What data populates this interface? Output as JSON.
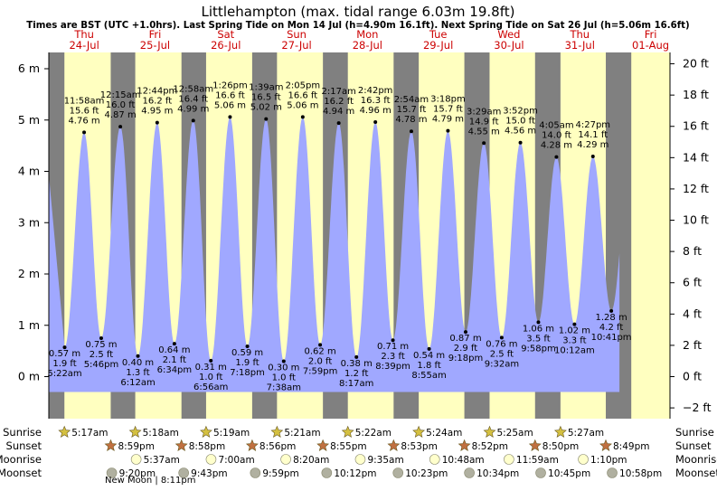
{
  "title": "Littlehampton (max. tidal range 6.03m 19.8ft)",
  "subtitle": "Times are BST (UTC +1.0hrs). Last Spring Tide on Mon 14 Jul (h=4.90m 16.1ft). Next Spring Tide on Sat 26 Jul (h=5.06m 16.6ft)",
  "colors": {
    "day": "#ffffc0",
    "night": "#808080",
    "tide": "#a0a8ff",
    "header_text": "#cc0000",
    "sunrise_icon": "#d4c040",
    "sunset_icon": "#c07040",
    "moonrise_icon": "#ffffcc",
    "moonset_icon": "#b0b0a0"
  },
  "chart_data": {
    "type": "area",
    "y_left_unit": "m",
    "y_right_unit": "ft",
    "ylim": [
      -0.3,
      6.3
    ],
    "left_ticks": [
      "0 m",
      "1 m",
      "2 m",
      "3 m",
      "4 m",
      "5 m",
      "6 m"
    ],
    "right_ticks": [
      "−2 ft",
      "0 ft",
      "2 ft",
      "4 ft",
      "6 ft",
      "8 ft",
      "10 ft",
      "12 ft",
      "14 ft",
      "16 ft",
      "18 ft",
      "20 ft"
    ],
    "days": [
      {
        "dow": "Thu",
        "date": "24-Jul",
        "sunrise": "5:17am",
        "sunset": "8:59pm",
        "moonrise": "",
        "moonset": "9:20pm"
      },
      {
        "dow": "Fri",
        "date": "25-Jul",
        "sunrise": "5:18am",
        "sunset": "8:58pm",
        "moonrise": "5:37am",
        "moonset": "9:43pm"
      },
      {
        "dow": "Sat",
        "date": "26-Jul",
        "sunrise": "5:19am",
        "sunset": "8:56pm",
        "moonrise": "7:00am",
        "moonset": "9:59pm"
      },
      {
        "dow": "Sun",
        "date": "27-Jul",
        "sunrise": "5:21am",
        "sunset": "8:55pm",
        "moonrise": "8:20am",
        "moonset": "10:12pm"
      },
      {
        "dow": "Mon",
        "date": "28-Jul",
        "sunrise": "5:22am",
        "sunset": "8:53pm",
        "moonrise": "9:35am",
        "moonset": "10:23pm"
      },
      {
        "dow": "Tue",
        "date": "29-Jul",
        "sunrise": "5:24am",
        "sunset": "8:52pm",
        "moonrise": "10:48am",
        "moonset": "10:34pm"
      },
      {
        "dow": "Wed",
        "date": "30-Jul",
        "sunrise": "5:25am",
        "sunset": "8:50pm",
        "moonrise": "11:59am",
        "moonset": "10:45pm"
      },
      {
        "dow": "Thu",
        "date": "31-Jul",
        "sunrise": "5:27am",
        "sunset": "8:49pm",
        "moonrise": "1:10pm",
        "moonset": "10:58pm"
      },
      {
        "dow": "Fri",
        "date": "01-Aug",
        "sunrise": "",
        "sunset": "",
        "moonrise": "",
        "moonset": ""
      }
    ],
    "tides": [
      {
        "day": 0,
        "time": "5:22am",
        "m": 0.57,
        "m_label": "0.57 m",
        "ft_label": "1.9 ft",
        "type": "low"
      },
      {
        "day": 0,
        "time": "11:58am",
        "m": 4.76,
        "m_label": "4.76 m",
        "ft_label": "15.6 ft",
        "type": "high"
      },
      {
        "day": 0,
        "time": "5:46pm",
        "m": 0.75,
        "m_label": "0.75 m",
        "ft_label": "2.5 ft",
        "type": "low"
      },
      {
        "day": 1,
        "time": "12:15am",
        "m": 4.87,
        "m_label": "4.87 m",
        "ft_label": "16.0 ft",
        "type": "high"
      },
      {
        "day": 1,
        "time": "6:12am",
        "m": 0.4,
        "m_label": "0.40 m",
        "ft_label": "1.3 ft",
        "type": "low"
      },
      {
        "day": 1,
        "time": "12:44pm",
        "m": 4.95,
        "m_label": "4.95 m",
        "ft_label": "16.2 ft",
        "type": "high"
      },
      {
        "day": 1,
        "time": "6:34pm",
        "m": 0.64,
        "m_label": "0.64 m",
        "ft_label": "2.1 ft",
        "type": "low"
      },
      {
        "day": 2,
        "time": "12:58am",
        "m": 4.99,
        "m_label": "4.99 m",
        "ft_label": "16.4 ft",
        "type": "high"
      },
      {
        "day": 2,
        "time": "6:56am",
        "m": 0.31,
        "m_label": "0.31 m",
        "ft_label": "1.0 ft",
        "type": "low"
      },
      {
        "day": 2,
        "time": "1:26pm",
        "m": 5.06,
        "m_label": "5.06 m",
        "ft_label": "16.6 ft",
        "type": "high"
      },
      {
        "day": 2,
        "time": "7:18pm",
        "m": 0.59,
        "m_label": "0.59 m",
        "ft_label": "1.9 ft",
        "type": "low"
      },
      {
        "day": 3,
        "time": "1:39am",
        "m": 5.02,
        "m_label": "5.02 m",
        "ft_label": "16.5 ft",
        "type": "high"
      },
      {
        "day": 3,
        "time": "7:38am",
        "m": 0.3,
        "m_label": "0.30 m",
        "ft_label": "1.0 ft",
        "type": "low"
      },
      {
        "day": 3,
        "time": "2:05pm",
        "m": 5.06,
        "m_label": "5.06 m",
        "ft_label": "16.6 ft",
        "type": "high"
      },
      {
        "day": 3,
        "time": "7:59pm",
        "m": 0.62,
        "m_label": "0.62 m",
        "ft_label": "2.0 ft",
        "type": "low"
      },
      {
        "day": 4,
        "time": "2:17am",
        "m": 4.94,
        "m_label": "4.94 m",
        "ft_label": "16.2 ft",
        "type": "high"
      },
      {
        "day": 4,
        "time": "8:17am",
        "m": 0.38,
        "m_label": "0.38 m",
        "ft_label": "1.2 ft",
        "type": "low"
      },
      {
        "day": 4,
        "time": "2:42pm",
        "m": 4.96,
        "m_label": "4.96 m",
        "ft_label": "16.3 ft",
        "type": "high"
      },
      {
        "day": 4,
        "time": "8:39pm",
        "m": 0.71,
        "m_label": "0.71 m",
        "ft_label": "2.3 ft",
        "type": "low"
      },
      {
        "day": 5,
        "time": "2:54am",
        "m": 4.78,
        "m_label": "4.78 m",
        "ft_label": "15.7 ft",
        "type": "high"
      },
      {
        "day": 5,
        "time": "8:55am",
        "m": 0.54,
        "m_label": "0.54 m",
        "ft_label": "1.8 ft",
        "type": "low"
      },
      {
        "day": 5,
        "time": "3:18pm",
        "m": 4.79,
        "m_label": "4.79 m",
        "ft_label": "15.7 ft",
        "type": "high"
      },
      {
        "day": 5,
        "time": "9:18pm",
        "m": 0.87,
        "m_label": "0.87 m",
        "ft_label": "2.9 ft",
        "type": "low"
      },
      {
        "day": 6,
        "time": "3:29am",
        "m": 4.55,
        "m_label": "4.55 m",
        "ft_label": "14.9 ft",
        "type": "high"
      },
      {
        "day": 6,
        "time": "9:32am",
        "m": 0.76,
        "m_label": "0.76 m",
        "ft_label": "2.5 ft",
        "type": "low"
      },
      {
        "day": 6,
        "time": "3:52pm",
        "m": 4.56,
        "m_label": "4.56 m",
        "ft_label": "15.0 ft",
        "type": "high"
      },
      {
        "day": 6,
        "time": "9:58pm",
        "m": 1.06,
        "m_label": "1.06 m",
        "ft_label": "3.5 ft",
        "type": "low"
      },
      {
        "day": 7,
        "time": "4:05am",
        "m": 4.28,
        "m_label": "4.28 m",
        "ft_label": "14.0 ft",
        "type": "high"
      },
      {
        "day": 7,
        "time": "10:12am",
        "m": 1.02,
        "m_label": "1.02 m",
        "ft_label": "3.3 ft",
        "type": "low"
      },
      {
        "day": 7,
        "time": "4:27pm",
        "m": 4.29,
        "m_label": "4.29 m",
        "ft_label": "14.1 ft",
        "type": "high"
      },
      {
        "day": 7,
        "time": "10:41pm",
        "m": 1.28,
        "m_label": "1.28 m",
        "ft_label": "4.2 ft",
        "type": "low"
      }
    ],
    "row_labels": {
      "sunrise": "Sunrise",
      "sunset": "Sunset",
      "moonrise": "Moonrise",
      "moonset": "Moonset"
    },
    "moon_phase": "New Moon | 8:11pm"
  }
}
